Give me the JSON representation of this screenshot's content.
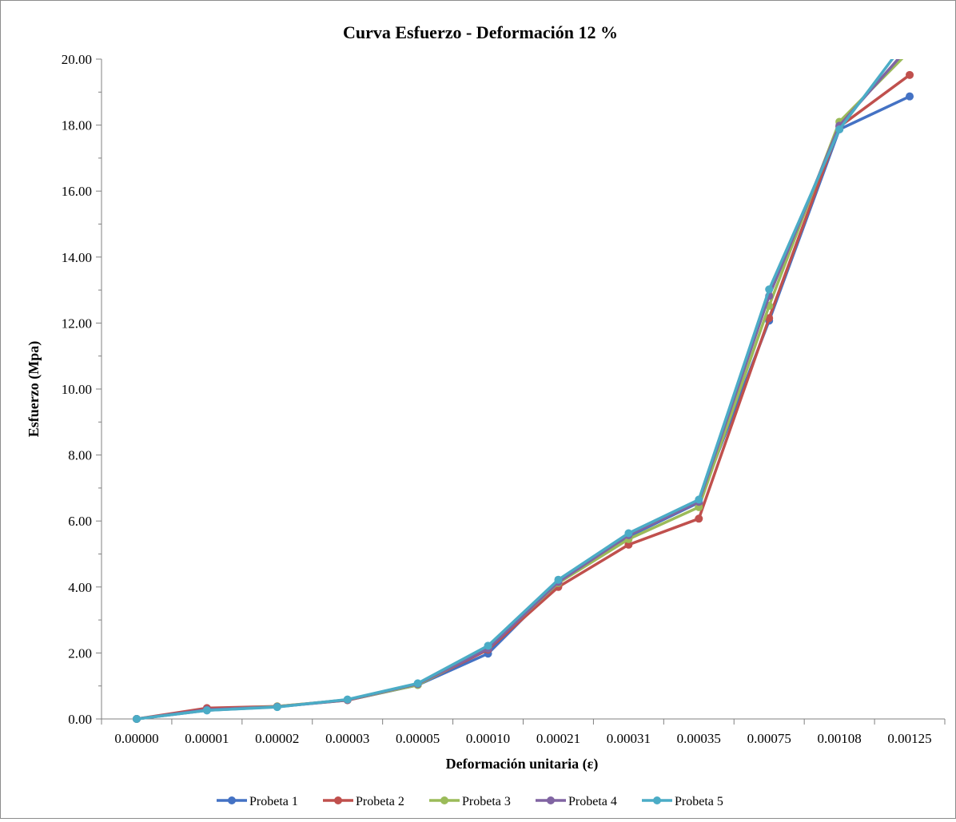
{
  "chart_data": {
    "type": "line",
    "title": "Curva Esfuerzo - Deformación 12 %",
    "xlabel": "Deformación unitaria (ε)",
    "ylabel": "Esfuerzo (Mpa)",
    "categories": [
      "0.00000",
      "0.00001",
      "0.00002",
      "0.00003",
      "0.00005",
      "0.00010",
      "0.00021",
      "0.00031",
      "0.00035",
      "0.00075",
      "0.00108",
      "0.00125"
    ],
    "ylim": [
      0,
      20
    ],
    "yticks": [
      "0.00",
      "2.00",
      "4.00",
      "6.00",
      "8.00",
      "10.00",
      "12.00",
      "14.00",
      "16.00",
      "18.00",
      "20.00"
    ],
    "grid": false,
    "legend_position": "bottom",
    "series": [
      {
        "name": "Probeta 1",
        "color": "#4472c4",
        "values": [
          0,
          0.26,
          0.37,
          0.57,
          1.03,
          1.98,
          4.12,
          5.53,
          6.56,
          12.07,
          17.87,
          18.87
        ]
      },
      {
        "name": "Probeta 2",
        "color": "#c0504d",
        "values": [
          0,
          0.33,
          0.38,
          0.57,
          1.04,
          2.1,
          4.0,
          5.28,
          6.07,
          12.15,
          17.95,
          19.52
        ]
      },
      {
        "name": "Probeta 3",
        "color": "#9bbb59",
        "values": [
          0,
          0.27,
          0.38,
          0.58,
          1.03,
          2.15,
          4.12,
          5.45,
          6.42,
          12.52,
          18.1,
          20.25
        ]
      },
      {
        "name": "Probeta 4",
        "color": "#8064a2",
        "values": [
          0,
          0.28,
          0.37,
          0.58,
          1.06,
          2.13,
          4.15,
          5.57,
          6.58,
          12.82,
          17.98,
          20.4
        ]
      },
      {
        "name": "Probeta 5",
        "color": "#4bacc6",
        "values": [
          0,
          0.26,
          0.36,
          0.59,
          1.08,
          2.22,
          4.22,
          5.63,
          6.65,
          13.02,
          17.87,
          20.7
        ]
      }
    ]
  }
}
